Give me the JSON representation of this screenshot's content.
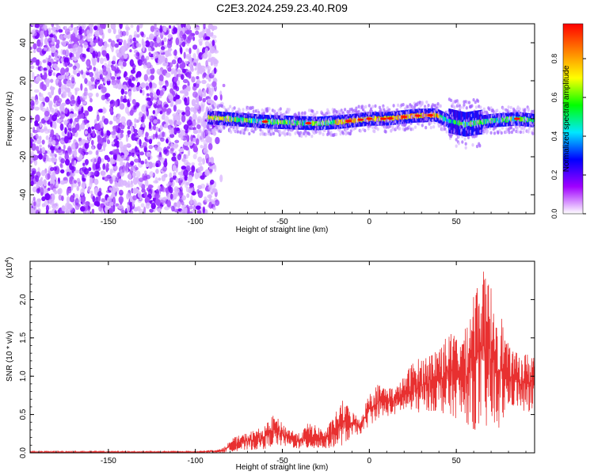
{
  "title": "C2E3.2024.259.23.40.R09",
  "chart_data": [
    {
      "type": "heatmap",
      "name": "spectrogram",
      "xlabel": "Height of straight line (km)",
      "ylabel": "Frequency (Hz)",
      "xlim": [
        -195,
        95
      ],
      "ylim": [
        -50,
        50
      ],
      "x_ticks": [
        -150,
        -100,
        -50,
        0,
        50
      ],
      "x_tick_labels": [
        "-150",
        "-100",
        "-50",
        "0",
        "50"
      ],
      "y_ticks": [
        -40,
        -20,
        0,
        20,
        40
      ],
      "y_tick_labels": [
        "-40",
        "-20",
        "0",
        "20",
        "40"
      ],
      "noise_region_x": [
        -195,
        -88
      ],
      "signal_band_x": [
        -93,
        95
      ],
      "signal_center_freq": [
        {
          "x": -90,
          "f": 0.5
        },
        {
          "x": -60,
          "f": -1.5
        },
        {
          "x": -30,
          "f": -2.5
        },
        {
          "x": -15,
          "f": -1.5
        },
        {
          "x": 0,
          "f": 0
        },
        {
          "x": 10,
          "f": 0
        },
        {
          "x": 25,
          "f": 1.5
        },
        {
          "x": 38,
          "f": 2
        },
        {
          "x": 45,
          "f": -1
        },
        {
          "x": 55,
          "f": -3
        },
        {
          "x": 70,
          "f": -1
        },
        {
          "x": 85,
          "f": 0
        },
        {
          "x": 95,
          "f": -1
        }
      ],
      "colorbar": {
        "label": "Normalized spectral amplitude",
        "range": [
          0,
          0.98
        ],
        "ticks": [
          0.0,
          0.2,
          0.4,
          0.6,
          0.8
        ],
        "tick_labels": [
          "0.0",
          "0.2",
          "0.4",
          "0.6",
          "0.8"
        ],
        "colors": [
          "#ffffff",
          "#a000ff",
          "#0000ff",
          "#00e8ff",
          "#00ff00",
          "#ffff00",
          "#ff8000",
          "#ff0000"
        ]
      }
    },
    {
      "type": "line",
      "name": "snr",
      "xlabel": "Height of straight line (km)",
      "ylabel": "SNR (10 * v/v)",
      "y_scale_label": "(x10",
      "y_scale_exp": "4",
      "y_scale_close": ")",
      "xlim": [
        -195,
        95
      ],
      "ylim": [
        0,
        2.5
      ],
      "x_ticks": [
        -150,
        -100,
        -50,
        0,
        50
      ],
      "x_tick_labels": [
        "-150",
        "-100",
        "-50",
        "0",
        "50"
      ],
      "y_ticks": [
        0.0,
        0.5,
        1.0,
        1.5,
        2.0
      ],
      "y_tick_labels": [
        "0.0",
        "0.5",
        "1.0",
        "1.5",
        "2.0"
      ],
      "color": "#e83030",
      "envelope": [
        {
          "x": -195,
          "lo": 0.0,
          "hi": 0.02
        },
        {
          "x": -100,
          "lo": 0.0,
          "hi": 0.02
        },
        {
          "x": -85,
          "lo": 0.0,
          "hi": 0.05
        },
        {
          "x": -78,
          "lo": 0.02,
          "hi": 0.2
        },
        {
          "x": -60,
          "lo": 0.05,
          "hi": 0.35
        },
        {
          "x": -55,
          "lo": 0.1,
          "hi": 0.5
        },
        {
          "x": -48,
          "lo": 0.08,
          "hi": 0.35
        },
        {
          "x": -40,
          "lo": 0.05,
          "hi": 0.25
        },
        {
          "x": -35,
          "lo": 0.05,
          "hi": 0.4
        },
        {
          "x": -25,
          "lo": 0.05,
          "hi": 0.3
        },
        {
          "x": -15,
          "lo": 0.1,
          "hi": 0.7
        },
        {
          "x": -10,
          "lo": 0.2,
          "hi": 0.55
        },
        {
          "x": -5,
          "lo": 0.25,
          "hi": 0.45
        },
        {
          "x": 0,
          "lo": 0.35,
          "hi": 0.8
        },
        {
          "x": 5,
          "lo": 0.45,
          "hi": 0.9
        },
        {
          "x": 15,
          "lo": 0.5,
          "hi": 0.85
        },
        {
          "x": 20,
          "lo": 0.55,
          "hi": 1.0
        },
        {
          "x": 25,
          "lo": 0.5,
          "hi": 1.2
        },
        {
          "x": 35,
          "lo": 0.55,
          "hi": 1.3
        },
        {
          "x": 45,
          "lo": 0.5,
          "hi": 1.55
        },
        {
          "x": 55,
          "lo": 0.4,
          "hi": 1.6
        },
        {
          "x": 60,
          "lo": 0.3,
          "hi": 2.2
        },
        {
          "x": 65,
          "lo": 0.3,
          "hi": 2.4
        },
        {
          "x": 70,
          "lo": 0.3,
          "hi": 2.2
        },
        {
          "x": 75,
          "lo": 0.3,
          "hi": 1.9
        },
        {
          "x": 80,
          "lo": 0.6,
          "hi": 1.4
        },
        {
          "x": 85,
          "lo": 0.6,
          "hi": 1.3
        },
        {
          "x": 90,
          "lo": 0.5,
          "hi": 1.3
        },
        {
          "x": 95,
          "lo": 0.5,
          "hi": 1.35
        }
      ]
    }
  ]
}
